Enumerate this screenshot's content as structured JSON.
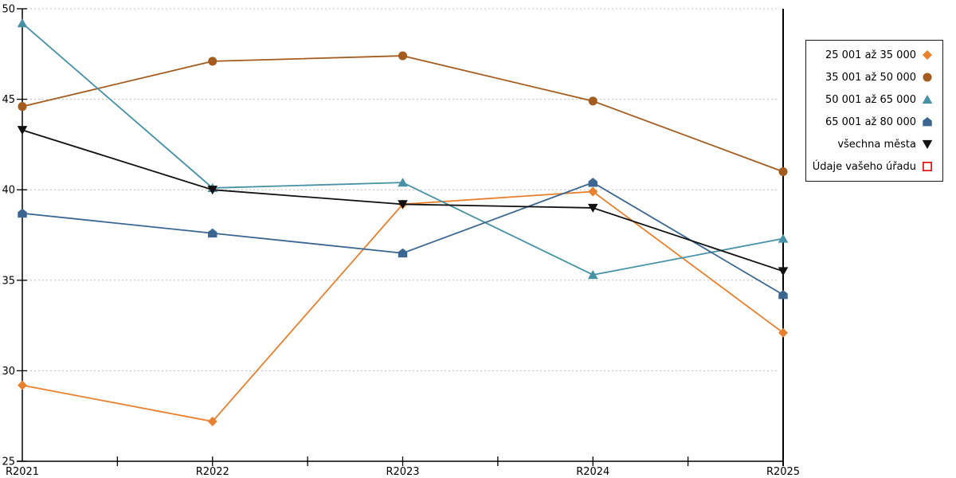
{
  "chart_data": {
    "type": "line",
    "title": "",
    "xlabel": "",
    "ylabel": "",
    "categories": [
      "R2021",
      "R2022",
      "R2023",
      "R2024",
      "R2025"
    ],
    "series": [
      {
        "name": "25 001 až 35 000",
        "color": "#E8802D",
        "marker": "diamond",
        "values": [
          29.2,
          27.2,
          39.2,
          39.9,
          32.1
        ]
      },
      {
        "name": "35 001 až 50 000",
        "color": "#A45B1E",
        "marker": "circle",
        "values": [
          44.6,
          47.1,
          47.4,
          44.9,
          41.0
        ]
      },
      {
        "name": "50 001 až 65 000",
        "color": "#4591A5",
        "marker": "triangle-up",
        "values": [
          49.2,
          40.1,
          40.4,
          35.3,
          37.3
        ]
      },
      {
        "name": "65 001 až 80 000",
        "color": "#3A6691",
        "marker": "pentagon",
        "values": [
          38.7,
          37.6,
          36.5,
          40.4,
          34.2
        ]
      },
      {
        "name": "všechna města",
        "color": "#111111",
        "marker": "triangle-down",
        "values": [
          43.3,
          40.0,
          39.2,
          39.0,
          35.5
        ]
      },
      {
        "name": "Údaje vašeho úřadu",
        "color": "#E02020",
        "marker": "square-open",
        "values": null
      }
    ],
    "ylim": [
      25,
      50
    ],
    "y_tick_step": 5,
    "y_tick_labels": [
      "50",
      "45",
      "40",
      "35",
      "30",
      "25"
    ],
    "grid": "horizontal-dashed",
    "grid_color": "#bdbdbd",
    "axis_color": "#000000",
    "legend_position": "right-overlay",
    "reference_line_x": "R2025"
  }
}
